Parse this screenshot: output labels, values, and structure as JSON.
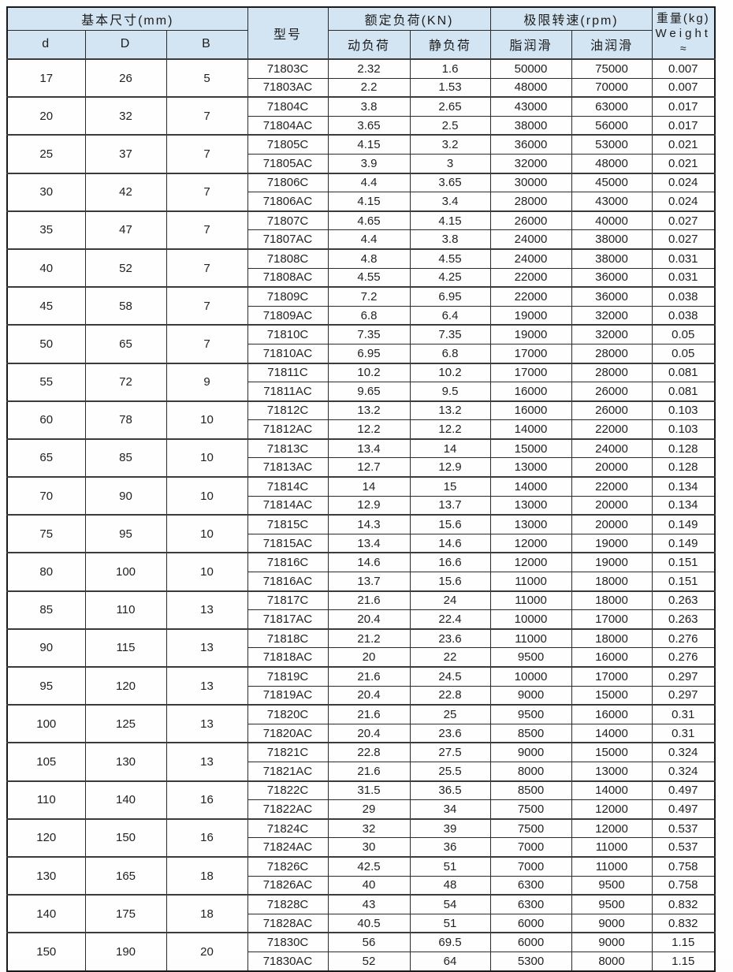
{
  "table": {
    "header": {
      "basic_size": "基本尺寸(mm)",
      "d": "d",
      "D": "D",
      "B": "B",
      "model": "型号",
      "rated_load": "额定负荷(KN)",
      "dynamic_load": "动负荷",
      "static_load": "静负荷",
      "limit_speed": "极限转速(rpm)",
      "grease_lube": "脂润滑",
      "oil_lube": "油润滑",
      "weight_line1": "重量(kg)",
      "weight_line2": "Weight",
      "weight_line3": "≈"
    },
    "colors": {
      "header_bg": "#d3e4f2",
      "border": "#2a2a2a",
      "text": "#1d1d1d"
    },
    "groups": [
      {
        "d": "17",
        "D": "26",
        "B": "5",
        "rows": [
          [
            "71803C",
            "2.32",
            "1.6",
            "50000",
            "75000",
            "0.007"
          ],
          [
            "71803AC",
            "2.2",
            "1.53",
            "48000",
            "70000",
            "0.007"
          ]
        ]
      },
      {
        "d": "20",
        "D": "32",
        "B": "7",
        "rows": [
          [
            "71804C",
            "3.8",
            "2.65",
            "43000",
            "63000",
            "0.017"
          ],
          [
            "71804AC",
            "3.65",
            "2.5",
            "38000",
            "56000",
            "0.017"
          ]
        ]
      },
      {
        "d": "25",
        "D": "37",
        "B": "7",
        "rows": [
          [
            "71805C",
            "4.15",
            "3.2",
            "36000",
            "53000",
            "0.021"
          ],
          [
            "71805AC",
            "3.9",
            "3",
            "32000",
            "48000",
            "0.021"
          ]
        ]
      },
      {
        "d": "30",
        "D": "42",
        "B": "7",
        "rows": [
          [
            "71806C",
            "4.4",
            "3.65",
            "30000",
            "45000",
            "0.024"
          ],
          [
            "71806AC",
            "4.15",
            "3.4",
            "28000",
            "43000",
            "0.024"
          ]
        ]
      },
      {
        "d": "35",
        "D": "47",
        "B": "7",
        "rows": [
          [
            "71807C",
            "4.65",
            "4.15",
            "26000",
            "40000",
            "0.027"
          ],
          [
            "71807AC",
            "4.4",
            "3.8",
            "24000",
            "38000",
            "0.027"
          ]
        ]
      },
      {
        "d": "40",
        "D": "52",
        "B": "7",
        "rows": [
          [
            "71808C",
            "4.8",
            "4.55",
            "24000",
            "38000",
            "0.031"
          ],
          [
            "71808AC",
            "4.55",
            "4.25",
            "22000",
            "36000",
            "0.031"
          ]
        ]
      },
      {
        "d": "45",
        "D": "58",
        "B": "7",
        "rows": [
          [
            "71809C",
            "7.2",
            "6.95",
            "22000",
            "36000",
            "0.038"
          ],
          [
            "71809AC",
            "6.8",
            "6.4",
            "19000",
            "32000",
            "0.038"
          ]
        ]
      },
      {
        "d": "50",
        "D": "65",
        "B": "7",
        "rows": [
          [
            "71810C",
            "7.35",
            "7.35",
            "19000",
            "32000",
            "0.05"
          ],
          [
            "71810AC",
            "6.95",
            "6.8",
            "17000",
            "28000",
            "0.05"
          ]
        ]
      },
      {
        "d": "55",
        "D": "72",
        "B": "9",
        "rows": [
          [
            "71811C",
            "10.2",
            "10.2",
            "17000",
            "28000",
            "0.081"
          ],
          [
            "71811AC",
            "9.65",
            "9.5",
            "16000",
            "26000",
            "0.081"
          ]
        ]
      },
      {
        "d": "60",
        "D": "78",
        "B": "10",
        "rows": [
          [
            "71812C",
            "13.2",
            "13.2",
            "16000",
            "26000",
            "0.103"
          ],
          [
            "71812AC",
            "12.2",
            "12.2",
            "14000",
            "22000",
            "0.103"
          ]
        ]
      },
      {
        "d": "65",
        "D": "85",
        "B": "10",
        "rows": [
          [
            "71813C",
            "13.4",
            "14",
            "15000",
            "24000",
            "0.128"
          ],
          [
            "71813AC",
            "12.7",
            "12.9",
            "13000",
            "20000",
            "0.128"
          ]
        ]
      },
      {
        "d": "70",
        "D": "90",
        "B": "10",
        "rows": [
          [
            "71814C",
            "14",
            "15",
            "14000",
            "22000",
            "0.134"
          ],
          [
            "71814AC",
            "12.9",
            "13.7",
            "13000",
            "20000",
            "0.134"
          ]
        ]
      },
      {
        "d": "75",
        "D": "95",
        "B": "10",
        "rows": [
          [
            "71815C",
            "14.3",
            "15.6",
            "13000",
            "20000",
            "0.149"
          ],
          [
            "71815AC",
            "13.4",
            "14.6",
            "12000",
            "19000",
            "0.149"
          ]
        ]
      },
      {
        "d": "80",
        "D": "100",
        "B": "10",
        "rows": [
          [
            "71816C",
            "14.6",
            "16.6",
            "12000",
            "19000",
            "0.151"
          ],
          [
            "71816AC",
            "13.7",
            "15.6",
            "11000",
            "18000",
            "0.151"
          ]
        ]
      },
      {
        "d": "85",
        "D": "110",
        "B": "13",
        "rows": [
          [
            "71817C",
            "21.6",
            "24",
            "11000",
            "18000",
            "0.263"
          ],
          [
            "71817AC",
            "20.4",
            "22.4",
            "10000",
            "17000",
            "0.263"
          ]
        ]
      },
      {
        "d": "90",
        "D": "115",
        "B": "13",
        "rows": [
          [
            "71818C",
            "21.2",
            "23.6",
            "11000",
            "18000",
            "0.276"
          ],
          [
            "71818AC",
            "20",
            "22",
            "9500",
            "16000",
            "0.276"
          ]
        ]
      },
      {
        "d": "95",
        "D": "120",
        "B": "13",
        "rows": [
          [
            "71819C",
            "21.6",
            "24.5",
            "10000",
            "17000",
            "0.297"
          ],
          [
            "71819AC",
            "20.4",
            "22.8",
            "9000",
            "15000",
            "0.297"
          ]
        ]
      },
      {
        "d": "100",
        "D": "125",
        "B": "13",
        "rows": [
          [
            "71820C",
            "21.6",
            "25",
            "9500",
            "16000",
            "0.31"
          ],
          [
            "71820AC",
            "20.4",
            "23.6",
            "8500",
            "14000",
            "0.31"
          ]
        ]
      },
      {
        "d": "105",
        "D": "130",
        "B": "13",
        "rows": [
          [
            "71821C",
            "22.8",
            "27.5",
            "9000",
            "15000",
            "0.324"
          ],
          [
            "71821AC",
            "21.6",
            "25.5",
            "8000",
            "13000",
            "0.324"
          ]
        ]
      },
      {
        "d": "110",
        "D": "140",
        "B": "16",
        "rows": [
          [
            "71822C",
            "31.5",
            "36.5",
            "8500",
            "14000",
            "0.497"
          ],
          [
            "71822AC",
            "29",
            "34",
            "7500",
            "12000",
            "0.497"
          ]
        ]
      },
      {
        "d": "120",
        "D": "150",
        "B": "16",
        "rows": [
          [
            "71824C",
            "32",
            "39",
            "7500",
            "12000",
            "0.537"
          ],
          [
            "71824AC",
            "30",
            "36",
            "7000",
            "11000",
            "0.537"
          ]
        ]
      },
      {
        "d": "130",
        "D": "165",
        "B": "18",
        "rows": [
          [
            "71826C",
            "42.5",
            "51",
            "7000",
            "11000",
            "0.758"
          ],
          [
            "71826AC",
            "40",
            "48",
            "6300",
            "9500",
            "0.758"
          ]
        ]
      },
      {
        "d": "140",
        "D": "175",
        "B": "18",
        "rows": [
          [
            "71828C",
            "43",
            "54",
            "6300",
            "9500",
            "0.832"
          ],
          [
            "71828AC",
            "40.5",
            "51",
            "6000",
            "9000",
            "0.832"
          ]
        ]
      },
      {
        "d": "150",
        "D": "190",
        "B": "20",
        "rows": [
          [
            "71830C",
            "56",
            "69.5",
            "6000",
            "9000",
            "1.15"
          ],
          [
            "71830AC",
            "52",
            "64",
            "5300",
            "8000",
            "1.15"
          ]
        ]
      }
    ]
  }
}
